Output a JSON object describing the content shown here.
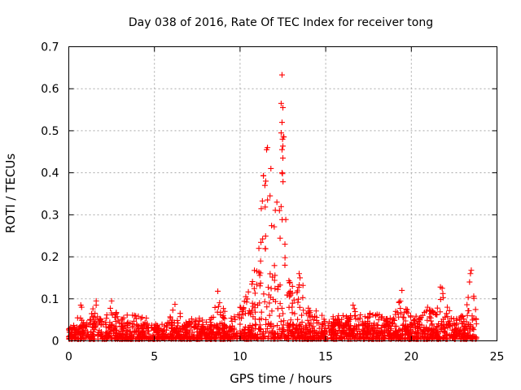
{
  "chart_data": {
    "type": "scatter",
    "title": "Day 038 of 2016, Rate Of TEC Index for receiver tong",
    "xlabel": "GPS time / hours",
    "ylabel": "ROTI / TECUs",
    "xlim": [
      0,
      25
    ],
    "ylim": [
      0,
      0.7
    ],
    "xticks": [
      0,
      5,
      10,
      15,
      20,
      25
    ],
    "xtick_labels": [
      "0",
      "5",
      "10",
      "15",
      "20",
      "25"
    ],
    "yticks": [
      0,
      0.1,
      0.2,
      0.3,
      0.4,
      0.5,
      0.6,
      0.7
    ],
    "ytick_labels": [
      "0",
      "0.1",
      "0.2",
      "0.3",
      "0.4",
      "0.5",
      "0.6",
      "0.7"
    ],
    "grid": true,
    "marker": "+",
    "series": [
      {
        "name": "ROTI",
        "color": "#ff0000",
        "data_extent": [
          0,
          23.8
        ],
        "baseline_points": [
          [
            0.3,
            0.03
          ],
          [
            0.7,
            0.085
          ],
          [
            1.0,
            0.04
          ],
          [
            1.6,
            0.095
          ],
          [
            2.0,
            0.04
          ],
          [
            2.5,
            0.095
          ],
          [
            3.0,
            0.05
          ],
          [
            3.5,
            0.07
          ],
          [
            4.0,
            0.06
          ],
          [
            4.5,
            0.055
          ],
          [
            5.0,
            0.04
          ],
          [
            5.5,
            0.03
          ],
          [
            6.2,
            0.087
          ],
          [
            6.8,
            0.045
          ],
          [
            7.5,
            0.06
          ],
          [
            8.2,
            0.045
          ],
          [
            8.7,
            0.115
          ],
          [
            9.2,
            0.06
          ],
          [
            9.7,
            0.07
          ],
          [
            10.2,
            0.09
          ],
          [
            10.6,
            0.15
          ],
          [
            11.0,
            0.22
          ],
          [
            11.5,
            0.46
          ],
          [
            11.9,
            0.3
          ],
          [
            12.2,
            0.33
          ],
          [
            12.45,
            0.633
          ],
          [
            12.8,
            0.2
          ],
          [
            13.2,
            0.1
          ],
          [
            13.6,
            0.155
          ],
          [
            14.0,
            0.08
          ],
          [
            14.5,
            0.07
          ],
          [
            15.0,
            0.065
          ],
          [
            15.5,
            0.06
          ],
          [
            16.0,
            0.06
          ],
          [
            16.6,
            0.085
          ],
          [
            17.2,
            0.06
          ],
          [
            17.8,
            0.07
          ],
          [
            18.3,
            0.06
          ],
          [
            18.9,
            0.055
          ],
          [
            19.4,
            0.12
          ],
          [
            19.9,
            0.06
          ],
          [
            20.4,
            0.06
          ],
          [
            20.9,
            0.08
          ],
          [
            21.4,
            0.07
          ],
          [
            21.7,
            0.128
          ],
          [
            22.2,
            0.075
          ],
          [
            22.7,
            0.06
          ],
          [
            23.2,
            0.07
          ],
          [
            23.45,
            0.17
          ],
          [
            23.8,
            0.06
          ]
        ],
        "notable_points": [
          [
            12.45,
            0.633
          ],
          [
            12.4,
            0.565
          ],
          [
            12.5,
            0.555
          ],
          [
            12.45,
            0.52
          ],
          [
            12.4,
            0.495
          ],
          [
            12.48,
            0.48
          ],
          [
            12.45,
            0.455
          ],
          [
            12.5,
            0.435
          ],
          [
            12.45,
            0.4
          ],
          [
            11.6,
            0.46
          ],
          [
            11.55,
            0.455
          ],
          [
            11.8,
            0.41
          ],
          [
            11.5,
            0.38
          ],
          [
            11.45,
            0.37
          ],
          [
            11.75,
            0.345
          ],
          [
            12.15,
            0.33
          ],
          [
            12.3,
            0.31
          ],
          [
            11.1,
            0.22
          ],
          [
            11.2,
            0.19
          ],
          [
            13.45,
            0.16
          ],
          [
            13.5,
            0.15
          ],
          [
            8.7,
            0.118
          ],
          [
            19.45,
            0.12
          ],
          [
            21.7,
            0.128
          ],
          [
            21.8,
            0.125
          ],
          [
            23.5,
            0.168
          ],
          [
            23.45,
            0.16
          ],
          [
            23.4,
            0.14
          ],
          [
            6.2,
            0.087
          ],
          [
            1.6,
            0.095
          ],
          [
            2.5,
            0.095
          ],
          [
            0.7,
            0.085
          ],
          [
            0.75,
            0.08
          ],
          [
            16.6,
            0.085
          ],
          [
            20.95,
            0.08
          ],
          [
            22.1,
            0.08
          ]
        ]
      }
    ]
  }
}
